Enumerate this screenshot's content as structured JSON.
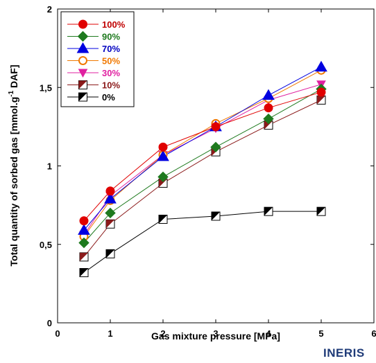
{
  "chart_data": {
    "type": "line",
    "xlabel": "Gas mixture pressure [MPa]",
    "ylabel_parts": [
      "Total quantity of sorbed gas [mmol.g",
      "-1",
      " DAF]"
    ],
    "xlim": [
      0,
      6
    ],
    "ylim": [
      0,
      2
    ],
    "xticks": [
      0,
      1,
      2,
      3,
      4,
      5,
      6
    ],
    "yticks": [
      0,
      0.5,
      1,
      1.5,
      2
    ],
    "ytick_labels": [
      "0",
      "0,5",
      "1",
      "1,5",
      "2"
    ],
    "grid": false,
    "legend_placement": "top-left",
    "series": [
      {
        "name": "100%",
        "color": "#e00000",
        "label_color": "#c00000",
        "marker": "circle",
        "x": [
          0.5,
          1,
          2,
          3,
          4,
          5
        ],
        "y": [
          0.65,
          0.84,
          1.12,
          1.25,
          1.37,
          1.47
        ]
      },
      {
        "name": "90%",
        "color": "#1e7a1e",
        "label_color": "#1e7a1e",
        "marker": "diamond",
        "x": [
          0.5,
          1,
          2,
          3,
          4,
          5
        ],
        "y": [
          0.51,
          0.7,
          0.93,
          1.12,
          1.3,
          1.49
        ]
      },
      {
        "name": "70%",
        "color": "#0000e0",
        "label_color": "#0000c0",
        "marker": "triangle",
        "x": [
          0.5,
          1,
          2,
          3,
          4,
          5
        ],
        "y": [
          0.59,
          0.79,
          1.06,
          1.25,
          1.45,
          1.63
        ]
      },
      {
        "name": "50%",
        "color": "#f07800",
        "label_color": "#f07800",
        "marker": "open-circle",
        "x": [
          0.5,
          1,
          2,
          3,
          4,
          5
        ],
        "y": [
          0.55,
          0.78,
          1.07,
          1.27,
          1.43,
          1.61
        ]
      },
      {
        "name": "30%",
        "color": "#e020a0",
        "label_color": "#e020a0",
        "marker": "down-triangle",
        "x": [
          0.5,
          1,
          2,
          3,
          4,
          5
        ],
        "y": [
          0.56,
          0.81,
          1.07,
          1.24,
          1.42,
          1.52
        ]
      },
      {
        "name": "10%",
        "color": "#8b1a1a",
        "label_color": "#8b1a1a",
        "marker": "half-square",
        "x": [
          0.5,
          1,
          2,
          3,
          4,
          5
        ],
        "y": [
          0.42,
          0.63,
          0.89,
          1.09,
          1.26,
          1.42
        ]
      },
      {
        "name": "0%",
        "color": "#000000",
        "label_color": "#000000",
        "marker": "half-square",
        "x": [
          0.5,
          1,
          2,
          3,
          4,
          5
        ],
        "y": [
          0.32,
          0.44,
          0.66,
          0.68,
          0.71,
          0.71
        ]
      }
    ]
  },
  "logo": {
    "text": "INERIS",
    "color": "#1f3b78"
  }
}
